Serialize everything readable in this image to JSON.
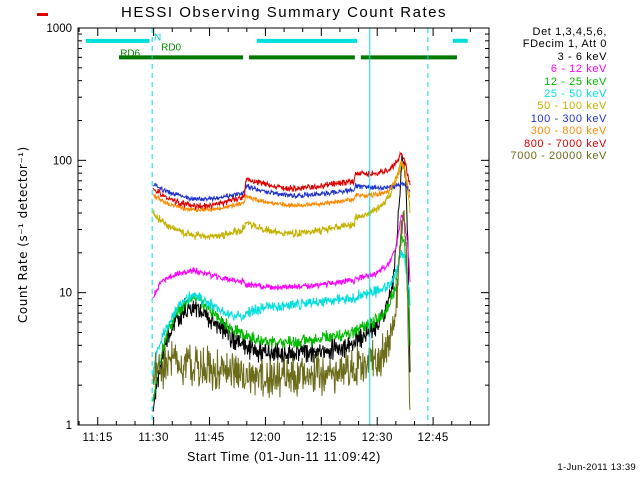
{
  "timestamp": "1-Jun-2011 13:39",
  "legend": {
    "header": [
      "Det 1,3,4,5,6,",
      "FDecim 1, Att 0"
    ],
    "items": [
      {
        "label": "3 - 6 keV",
        "color": "#000000"
      },
      {
        "label": "6 - 12 keV",
        "color": "#ff00ff"
      },
      {
        "label": "12 - 25 keV",
        "color": "#00bb00"
      },
      {
        "label": "25 - 50 keV",
        "color": "#00dddd"
      },
      {
        "label": "50 - 100 keV",
        "color": "#c3b100"
      },
      {
        "label": "100 - 300 keV",
        "color": "#2233cc"
      },
      {
        "label": "300 - 800 keV",
        "color": "#ff8800"
      },
      {
        "label": "800 - 7000 keV",
        "color": "#dd0000"
      },
      {
        "label": "7000 - 20000 keV",
        "color": "#6b6b1a"
      }
    ]
  },
  "chart_data": {
    "type": "line",
    "title": "HESSI Observing Summary Count Rates",
    "xlabel": "Start Time (01-Jun-11 11:09:42)",
    "ylabel": "Count Rate (s⁻¹ detector⁻¹)",
    "x_axis": {
      "tick_labels": [
        "11:15",
        "11:30",
        "11:45",
        "12:00",
        "12:15",
        "12:30",
        "12:45"
      ],
      "tick_minutes": [
        15,
        30,
        45,
        60,
        75,
        90,
        105
      ],
      "minor_step": 5,
      "range_minutes": [
        9.7,
        120
      ]
    },
    "y_axis": {
      "scale": "log",
      "tick_labels": [
        "1",
        "10",
        "100",
        "1000"
      ],
      "tick_values": [
        1,
        10,
        100,
        1000
      ],
      "range": [
        1,
        1000
      ]
    },
    "flag_bars": [
      {
        "name": "night-flag",
        "color": "#00dddd",
        "value": 800,
        "segments": [
          [
            11.8,
            28.9
          ],
          [
            57.7,
            84.6
          ],
          [
            110.3,
            114.3
          ]
        ]
      },
      {
        "name": "decimation-flag",
        "color": "#007700",
        "value": 600,
        "segments": [
          [
            20.7,
            54.0
          ],
          [
            55.6,
            84.0
          ],
          [
            85.6,
            111.4
          ]
        ]
      }
    ],
    "annotations": [
      {
        "text": "N",
        "color": "#00cccc",
        "t": 30.1,
        "v": 850
      },
      {
        "text": "RD0",
        "color": "#008800",
        "t": 32.0,
        "v": 710
      },
      {
        "text": "RD6",
        "color": "#008800",
        "t": 21.0,
        "v": 640
      }
    ],
    "event_lines": [
      {
        "t": 29.6,
        "style": "dashed",
        "color": "#00dddd"
      },
      {
        "t": 88.0,
        "style": "solid",
        "color": "#00dddd"
      },
      {
        "t": 103.6,
        "style": "dashed",
        "color": "#00dddd"
      }
    ],
    "series": [
      {
        "name": "3 - 6 keV",
        "color": "#000000",
        "noise": 0.1,
        "points": [
          [
            29.8,
            1.3
          ],
          [
            31,
            2.2
          ],
          [
            33,
            4.0
          ],
          [
            36,
            6.3
          ],
          [
            39,
            7.7
          ],
          [
            41,
            8.0
          ],
          [
            44,
            6.8
          ],
          [
            47,
            5.6
          ],
          [
            50,
            4.7
          ],
          [
            52,
            4.3
          ],
          [
            54.4,
            4.0
          ],
          [
            54.7,
            3.8
          ],
          [
            58,
            3.5
          ],
          [
            62,
            3.4
          ],
          [
            66,
            3.4
          ],
          [
            70,
            3.5
          ],
          [
            74,
            3.6
          ],
          [
            78,
            3.8
          ],
          [
            83.9,
            4.1
          ],
          [
            84.2,
            4.4
          ],
          [
            86,
            4.7
          ],
          [
            88,
            5.2
          ],
          [
            90,
            5.8
          ],
          [
            92,
            7.0
          ],
          [
            94,
            11
          ],
          [
            95.5,
            30
          ],
          [
            96.5,
            90
          ],
          [
            97.0,
            100
          ],
          [
            97.6,
            70
          ],
          [
            98.2,
            25
          ],
          [
            98.6,
            6
          ],
          [
            98.8,
            2.5
          ]
        ]
      },
      {
        "name": "6 - 12 keV",
        "color": "#ff00ff",
        "noise": 0.03,
        "points": [
          [
            29.8,
            9.0
          ],
          [
            31,
            10.8
          ],
          [
            33,
            12.5
          ],
          [
            37,
            14.0
          ],
          [
            40,
            14.8
          ],
          [
            43,
            14.2
          ],
          [
            47,
            13.2
          ],
          [
            51,
            12.4
          ],
          [
            54.4,
            12.0
          ],
          [
            54.7,
            11.6
          ],
          [
            58,
            11.2
          ],
          [
            63,
            11.0
          ],
          [
            68,
            11.1
          ],
          [
            73,
            11.4
          ],
          [
            78,
            11.8
          ],
          [
            83.9,
            12.3
          ],
          [
            84.2,
            12.8
          ],
          [
            87,
            13.2
          ],
          [
            90,
            14.2
          ],
          [
            93,
            16.5
          ],
          [
            95,
            22
          ],
          [
            96.5,
            38
          ],
          [
            97.2,
            36
          ],
          [
            98,
            26
          ],
          [
            98.6,
            16
          ],
          [
            98.8,
            12
          ]
        ]
      },
      {
        "name": "12 - 25 keV",
        "color": "#00bb00",
        "noise": 0.06,
        "points": [
          [
            29.8,
            1.5
          ],
          [
            31,
            2.4
          ],
          [
            33,
            4.4
          ],
          [
            36,
            7.0
          ],
          [
            39,
            8.8
          ],
          [
            41,
            9.3
          ],
          [
            44,
            8.0
          ],
          [
            47,
            6.6
          ],
          [
            50,
            5.6
          ],
          [
            52,
            5.2
          ],
          [
            54.4,
            4.9
          ],
          [
            54.7,
            4.7
          ],
          [
            58,
            4.4
          ],
          [
            63,
            4.2
          ],
          [
            68,
            4.2
          ],
          [
            73,
            4.4
          ],
          [
            78,
            4.7
          ],
          [
            83.9,
            5.0
          ],
          [
            84.2,
            5.3
          ],
          [
            87,
            5.7
          ],
          [
            90,
            6.3
          ],
          [
            93,
            7.8
          ],
          [
            95,
            11
          ],
          [
            96.5,
            26
          ],
          [
            97.2,
            24
          ],
          [
            98,
            15
          ],
          [
            98.6,
            7
          ],
          [
            98.8,
            4
          ]
        ]
      },
      {
        "name": "25 - 50 keV",
        "color": "#00dddd",
        "noise": 0.05,
        "points": [
          [
            29.8,
            2.4
          ],
          [
            31,
            3.6
          ],
          [
            33,
            5.2
          ],
          [
            36,
            7.4
          ],
          [
            39,
            9.0
          ],
          [
            41,
            9.6
          ],
          [
            44,
            8.6
          ],
          [
            47,
            7.6
          ],
          [
            50,
            6.9
          ],
          [
            54.4,
            6.6
          ],
          [
            54.7,
            7.0
          ],
          [
            58,
            7.4
          ],
          [
            63,
            7.8
          ],
          [
            68,
            8.1
          ],
          [
            73,
            8.4
          ],
          [
            78,
            8.7
          ],
          [
            83.9,
            9.0
          ],
          [
            84.2,
            9.4
          ],
          [
            87,
            9.7
          ],
          [
            90,
            10.2
          ],
          [
            93,
            11.2
          ],
          [
            95,
            14
          ],
          [
            96.5,
            21
          ],
          [
            97.2,
            19
          ],
          [
            98,
            14
          ],
          [
            98.6,
            10
          ],
          [
            98.8,
            8
          ]
        ]
      },
      {
        "name": "50 - 100 keV",
        "color": "#c3b100",
        "noise": 0.035,
        "points": [
          [
            29.8,
            40
          ],
          [
            31,
            37
          ],
          [
            33,
            33
          ],
          [
            37,
            29
          ],
          [
            41,
            27
          ],
          [
            45,
            26.5
          ],
          [
            49,
            27.5
          ],
          [
            52,
            29
          ],
          [
            54.4,
            31
          ],
          [
            54.7,
            34
          ],
          [
            58,
            31
          ],
          [
            63,
            28.5
          ],
          [
            68,
            28
          ],
          [
            73,
            29
          ],
          [
            78,
            30.5
          ],
          [
            83.9,
            33
          ],
          [
            84.2,
            37
          ],
          [
            87,
            39
          ],
          [
            90,
            43
          ],
          [
            93,
            52
          ],
          [
            95,
            68
          ],
          [
            96.5,
            95
          ],
          [
            97.2,
            88
          ],
          [
            98,
            65
          ],
          [
            98.6,
            48
          ],
          [
            98.8,
            40
          ]
        ]
      },
      {
        "name": "100 - 300 keV",
        "color": "#2233cc",
        "noise": 0.022,
        "points": [
          [
            29.8,
            66
          ],
          [
            31,
            63
          ],
          [
            33,
            59
          ],
          [
            37,
            54
          ],
          [
            41,
            51
          ],
          [
            45,
            51
          ],
          [
            49,
            53
          ],
          [
            52,
            55
          ],
          [
            54.4,
            57
          ],
          [
            54.7,
            64
          ],
          [
            58,
            60
          ],
          [
            63,
            56
          ],
          [
            68,
            54
          ],
          [
            73,
            55
          ],
          [
            78,
            57
          ],
          [
            83.9,
            60
          ],
          [
            84.2,
            64
          ],
          [
            87,
            63
          ],
          [
            90,
            62
          ],
          [
            93,
            62
          ],
          [
            95,
            64
          ],
          [
            96.5,
            68
          ],
          [
            97.2,
            66
          ],
          [
            98,
            62
          ],
          [
            98.8,
            58
          ]
        ]
      },
      {
        "name": "300 - 800 keV",
        "color": "#ff8800",
        "noise": 0.022,
        "points": [
          [
            29.8,
            55
          ],
          [
            31,
            52
          ],
          [
            33,
            48
          ],
          [
            37,
            44
          ],
          [
            41,
            42.5
          ],
          [
            45,
            42.5
          ],
          [
            49,
            44
          ],
          [
            52,
            46
          ],
          [
            54.4,
            48
          ],
          [
            54.7,
            54
          ],
          [
            58,
            50
          ],
          [
            63,
            47
          ],
          [
            68,
            45.5
          ],
          [
            73,
            46.5
          ],
          [
            78,
            48
          ],
          [
            83.9,
            51
          ],
          [
            84.2,
            55
          ],
          [
            87,
            54
          ],
          [
            90,
            55
          ],
          [
            93,
            58
          ],
          [
            95,
            72
          ],
          [
            96.5,
            100
          ],
          [
            97.2,
            92
          ],
          [
            98,
            68
          ],
          [
            98.8,
            52
          ]
        ]
      },
      {
        "name": "800 - 7000 keV",
        "color": "#dd0000",
        "noise": 0.028,
        "points": [
          [
            29.8,
            62
          ],
          [
            31,
            58
          ],
          [
            33,
            53
          ],
          [
            37,
            48
          ],
          [
            41,
            45
          ],
          [
            45,
            45.5
          ],
          [
            49,
            48
          ],
          [
            52,
            51
          ],
          [
            54.4,
            54
          ],
          [
            54.7,
            72
          ],
          [
            58,
            68
          ],
          [
            63,
            63
          ],
          [
            68,
            61
          ],
          [
            73,
            63
          ],
          [
            78,
            66
          ],
          [
            83.9,
            70
          ],
          [
            84.2,
            80
          ],
          [
            87,
            79
          ],
          [
            90,
            80
          ],
          [
            93,
            84
          ],
          [
            95,
            95
          ],
          [
            96.5,
            112
          ],
          [
            97.2,
            104
          ],
          [
            98,
            82
          ],
          [
            98.8,
            65
          ]
        ]
      },
      {
        "name": "7000 - 20000 keV",
        "color": "#6b6b1a",
        "noise": 0.18,
        "points": [
          [
            29.8,
            2.4
          ],
          [
            31,
            2.6
          ],
          [
            35,
            2.9
          ],
          [
            39,
            3.0
          ],
          [
            43,
            2.8
          ],
          [
            47,
            2.6
          ],
          [
            51,
            2.5
          ],
          [
            54.5,
            2.4
          ],
          [
            59,
            2.3
          ],
          [
            64,
            2.25
          ],
          [
            69,
            2.3
          ],
          [
            74,
            2.4
          ],
          [
            79,
            2.5
          ],
          [
            83.9,
            2.6
          ],
          [
            84.2,
            2.7
          ],
          [
            87,
            2.9
          ],
          [
            90,
            3.2
          ],
          [
            93,
            4.0
          ],
          [
            95,
            7
          ],
          [
            96.5,
            30
          ],
          [
            97.2,
            40
          ],
          [
            97.8,
            20
          ],
          [
            98.3,
            6
          ],
          [
            98.8,
            1.3
          ]
        ]
      }
    ]
  }
}
